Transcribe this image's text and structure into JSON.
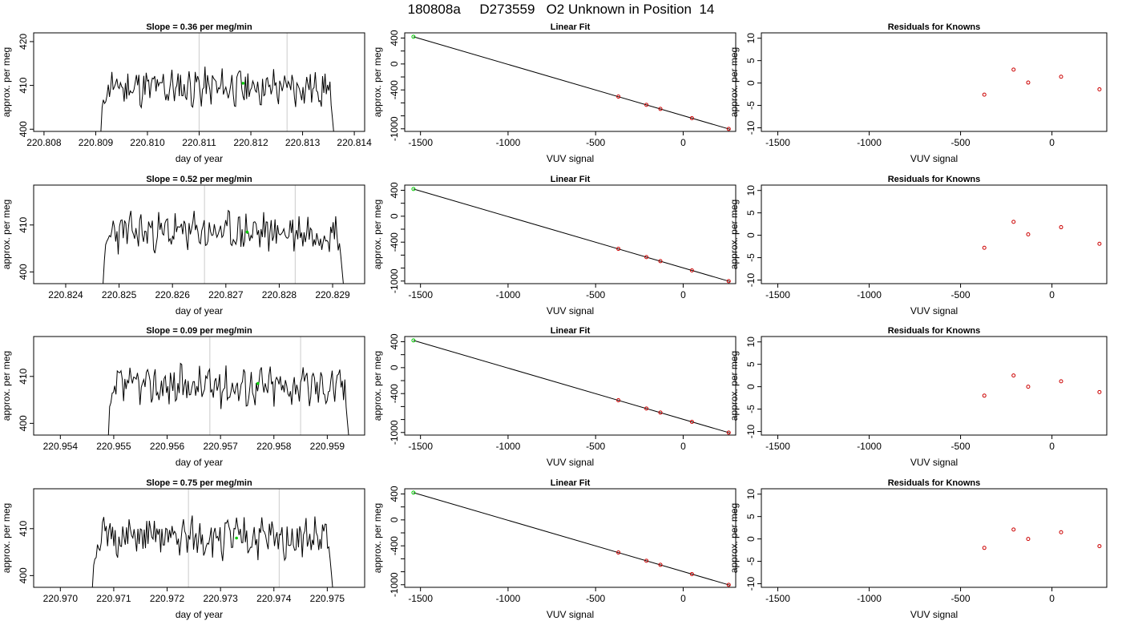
{
  "page_title": "180808a     D273559   O2 Unknown in Position  14",
  "colors": {
    "axis": "#000000",
    "trace": "#000000",
    "vline": "#d3d3d3",
    "unknown": "#00cc00",
    "known": "#cc0000"
  },
  "chart_data": [
    {
      "id": "row1-timeseries",
      "type": "line",
      "title": "Slope =  0.36  per meg/min",
      "xlabel": "day of year",
      "ylabel": "approx. per meg",
      "xlim": [
        220.8078,
        220.8142
      ],
      "ylim": [
        399.5,
        422.0
      ],
      "xticks": [
        "220.808",
        "220.809",
        "220.810",
        "220.811",
        "220.812",
        "220.813",
        "220.814"
      ],
      "yticks": [
        "400",
        "410",
        "420"
      ],
      "vlines": [
        220.811,
        220.8127
      ],
      "unknown_point": {
        "x": 220.81185,
        "y": 410.5
      },
      "series": [
        {
          "x_start": 220.8091,
          "x_end": 220.8136,
          "base": 409.5,
          "seed": 11
        }
      ]
    },
    {
      "id": "row1-fit",
      "type": "scatter",
      "title": "Linear Fit",
      "xlabel": "VUV signal",
      "ylabel": "approx. per meg",
      "xlim": [
        -1590,
        300
      ],
      "ylim": [
        -1040,
        480
      ],
      "xticks": [
        "-1500",
        "-1000",
        "-500",
        "0"
      ],
      "yticks": [
        "400",
        "0",
        "-400",
        "-1000"
      ],
      "fit_line": [
        [
          -1540,
          420
        ],
        [
          270,
          -1010
        ]
      ],
      "unknown_point": {
        "x": -1540,
        "y": 420
      },
      "known_points": [
        {
          "x": -370,
          "y": -503
        },
        {
          "x": -210,
          "y": -631
        },
        {
          "x": -130,
          "y": -693
        },
        {
          "x": 50,
          "y": -836
        },
        {
          "x": 260,
          "y": -1002
        }
      ]
    },
    {
      "id": "row1-resid",
      "type": "scatter",
      "title": "Residuals for Knowns",
      "xlabel": "VUV signal",
      "ylabel": "approx. per meg",
      "xlim": [
        -1590,
        300
      ],
      "ylim": [
        -10.8,
        11.2
      ],
      "xticks": [
        "-1500",
        "-1000",
        "-500",
        "0"
      ],
      "yticks": [
        "10",
        "5",
        "0",
        "-5",
        "-10"
      ],
      "known_points": [
        {
          "x": -370,
          "y": -2.6
        },
        {
          "x": -210,
          "y": 3.0
        },
        {
          "x": -130,
          "y": 0.1
        },
        {
          "x": 50,
          "y": 1.4
        },
        {
          "x": 260,
          "y": -1.4
        }
      ]
    },
    {
      "id": "row2-timeseries",
      "type": "line",
      "title": "Slope =  0.52  per meg/min",
      "xlabel": "day of year",
      "ylabel": "approx. per meg",
      "xlim": [
        220.8234,
        220.8296
      ],
      "ylim": [
        397.5,
        418.5
      ],
      "xticks": [
        "220.824",
        "220.825",
        "220.826",
        "220.827",
        "220.828",
        "220.829"
      ],
      "yticks": [
        "400",
        "410"
      ],
      "vlines": [
        220.8266,
        220.8283
      ],
      "unknown_point": {
        "x": 220.8274,
        "y": 408.5
      },
      "series": [
        {
          "x_start": 220.8247,
          "x_end": 220.8292,
          "base": 408.5,
          "seed": 23
        }
      ]
    },
    {
      "id": "row2-fit",
      "type": "scatter",
      "title": "Linear Fit",
      "xlabel": "VUV signal",
      "ylabel": "approx. per meg",
      "xlim": [
        -1590,
        300
      ],
      "ylim": [
        -1040,
        480
      ],
      "xticks": [
        "-1500",
        "-1000",
        "-500",
        "0"
      ],
      "yticks": [
        "400",
        "0",
        "-400",
        "-1000"
      ],
      "fit_line": [
        [
          -1540,
          420
        ],
        [
          270,
          -1010
        ]
      ],
      "unknown_point": {
        "x": -1540,
        "y": 420
      },
      "known_points": [
        {
          "x": -370,
          "y": -503
        },
        {
          "x": -210,
          "y": -631
        },
        {
          "x": -130,
          "y": -693
        },
        {
          "x": 50,
          "y": -836
        },
        {
          "x": 260,
          "y": -1002
        }
      ]
    },
    {
      "id": "row2-resid",
      "type": "scatter",
      "title": "Residuals for Knowns",
      "xlabel": "VUV signal",
      "ylabel": "approx. per meg",
      "xlim": [
        -1590,
        300
      ],
      "ylim": [
        -10.8,
        11.2
      ],
      "xticks": [
        "-1500",
        "-1000",
        "-500",
        "0"
      ],
      "yticks": [
        "10",
        "5",
        "0",
        "-5",
        "-10"
      ],
      "known_points": [
        {
          "x": -370,
          "y": -2.8
        },
        {
          "x": -210,
          "y": 3.0
        },
        {
          "x": -130,
          "y": 0.2
        },
        {
          "x": 50,
          "y": 1.8
        },
        {
          "x": 260,
          "y": -1.9
        }
      ]
    },
    {
      "id": "row3-timeseries",
      "type": "line",
      "title": "Slope =  0.09  per meg/min",
      "xlabel": "day of year",
      "ylabel": "approx. per meg",
      "xlim": [
        220.9535,
        220.9597
      ],
      "ylim": [
        397.5,
        418.5
      ],
      "xticks": [
        "220.954",
        "220.955",
        "220.956",
        "220.957",
        "220.958",
        "220.959"
      ],
      "yticks": [
        "400",
        "410"
      ],
      "vlines": [
        220.9568,
        220.9585
      ],
      "unknown_point": {
        "x": 220.9577,
        "y": 408.5
      },
      "series": [
        {
          "x_start": 220.9549,
          "x_end": 220.9594,
          "base": 408.0,
          "seed": 37
        }
      ]
    },
    {
      "id": "row3-fit",
      "type": "scatter",
      "title": "Linear Fit",
      "xlabel": "VUV signal",
      "ylabel": "approx. per meg",
      "xlim": [
        -1590,
        300
      ],
      "ylim": [
        -1040,
        480
      ],
      "xticks": [
        "-1500",
        "-1000",
        "-500",
        "0"
      ],
      "yticks": [
        "400",
        "0",
        "-400",
        "-1000"
      ],
      "fit_line": [
        [
          -1540,
          420
        ],
        [
          270,
          -1010
        ]
      ],
      "unknown_point": {
        "x": -1540,
        "y": 420
      },
      "known_points": [
        {
          "x": -370,
          "y": -503
        },
        {
          "x": -210,
          "y": -631
        },
        {
          "x": -130,
          "y": -693
        },
        {
          "x": 50,
          "y": -836
        },
        {
          "x": 260,
          "y": -1002
        }
      ]
    },
    {
      "id": "row3-resid",
      "type": "scatter",
      "title": "Residuals for Knowns",
      "xlabel": "VUV signal",
      "ylabel": "approx. per meg",
      "xlim": [
        -1590,
        300
      ],
      "ylim": [
        -10.8,
        11.2
      ],
      "xticks": [
        "-1500",
        "-1000",
        "-500",
        "0"
      ],
      "yticks": [
        "10",
        "5",
        "0",
        "-5",
        "-10"
      ],
      "known_points": [
        {
          "x": -370,
          "y": -2.0
        },
        {
          "x": -210,
          "y": 2.5
        },
        {
          "x": -130,
          "y": 0.0
        },
        {
          "x": 50,
          "y": 1.2
        },
        {
          "x": 260,
          "y": -1.2
        }
      ]
    },
    {
      "id": "row4-timeseries",
      "type": "line",
      "title": "Slope =  0.75  per meg/min",
      "xlabel": "day of year",
      "ylabel": "approx. per meg",
      "xlim": [
        220.9695,
        220.9757
      ],
      "ylim": [
        397.5,
        418.5
      ],
      "xticks": [
        "220.970",
        "220.971",
        "220.972",
        "220.973",
        "220.974",
        "220.975"
      ],
      "yticks": [
        "400",
        "410"
      ],
      "vlines": [
        220.9724,
        220.9741
      ],
      "unknown_point": {
        "x": 220.9733,
        "y": 408.0
      },
      "series": [
        {
          "x_start": 220.9706,
          "x_end": 220.9751,
          "base": 408.0,
          "seed": 51
        }
      ]
    },
    {
      "id": "row4-fit",
      "type": "scatter",
      "title": "Linear Fit",
      "xlabel": "VUV signal",
      "ylabel": "approx. per meg",
      "xlim": [
        -1590,
        300
      ],
      "ylim": [
        -1040,
        480
      ],
      "xticks": [
        "-1500",
        "-1000",
        "-500",
        "0"
      ],
      "yticks": [
        "400",
        "0",
        "-400",
        "-1000"
      ],
      "fit_line": [
        [
          -1540,
          420
        ],
        [
          270,
          -1010
        ]
      ],
      "unknown_point": {
        "x": -1540,
        "y": 420
      },
      "known_points": [
        {
          "x": -370,
          "y": -503
        },
        {
          "x": -210,
          "y": -631
        },
        {
          "x": -130,
          "y": -693
        },
        {
          "x": 50,
          "y": -836
        },
        {
          "x": 260,
          "y": -1002
        }
      ]
    },
    {
      "id": "row4-resid",
      "type": "scatter",
      "title": "Residuals for Knowns",
      "xlabel": "VUV signal",
      "ylabel": "approx. per meg",
      "xlim": [
        -1590,
        300
      ],
      "ylim": [
        -10.8,
        11.2
      ],
      "xticks": [
        "-1500",
        "-1000",
        "-500",
        "0"
      ],
      "yticks": [
        "10",
        "5",
        "0",
        "-5",
        "-10"
      ],
      "known_points": [
        {
          "x": -370,
          "y": -2.0
        },
        {
          "x": -210,
          "y": 2.1
        },
        {
          "x": -130,
          "y": 0.0
        },
        {
          "x": 50,
          "y": 1.5
        },
        {
          "x": 260,
          "y": -1.6
        }
      ]
    }
  ]
}
